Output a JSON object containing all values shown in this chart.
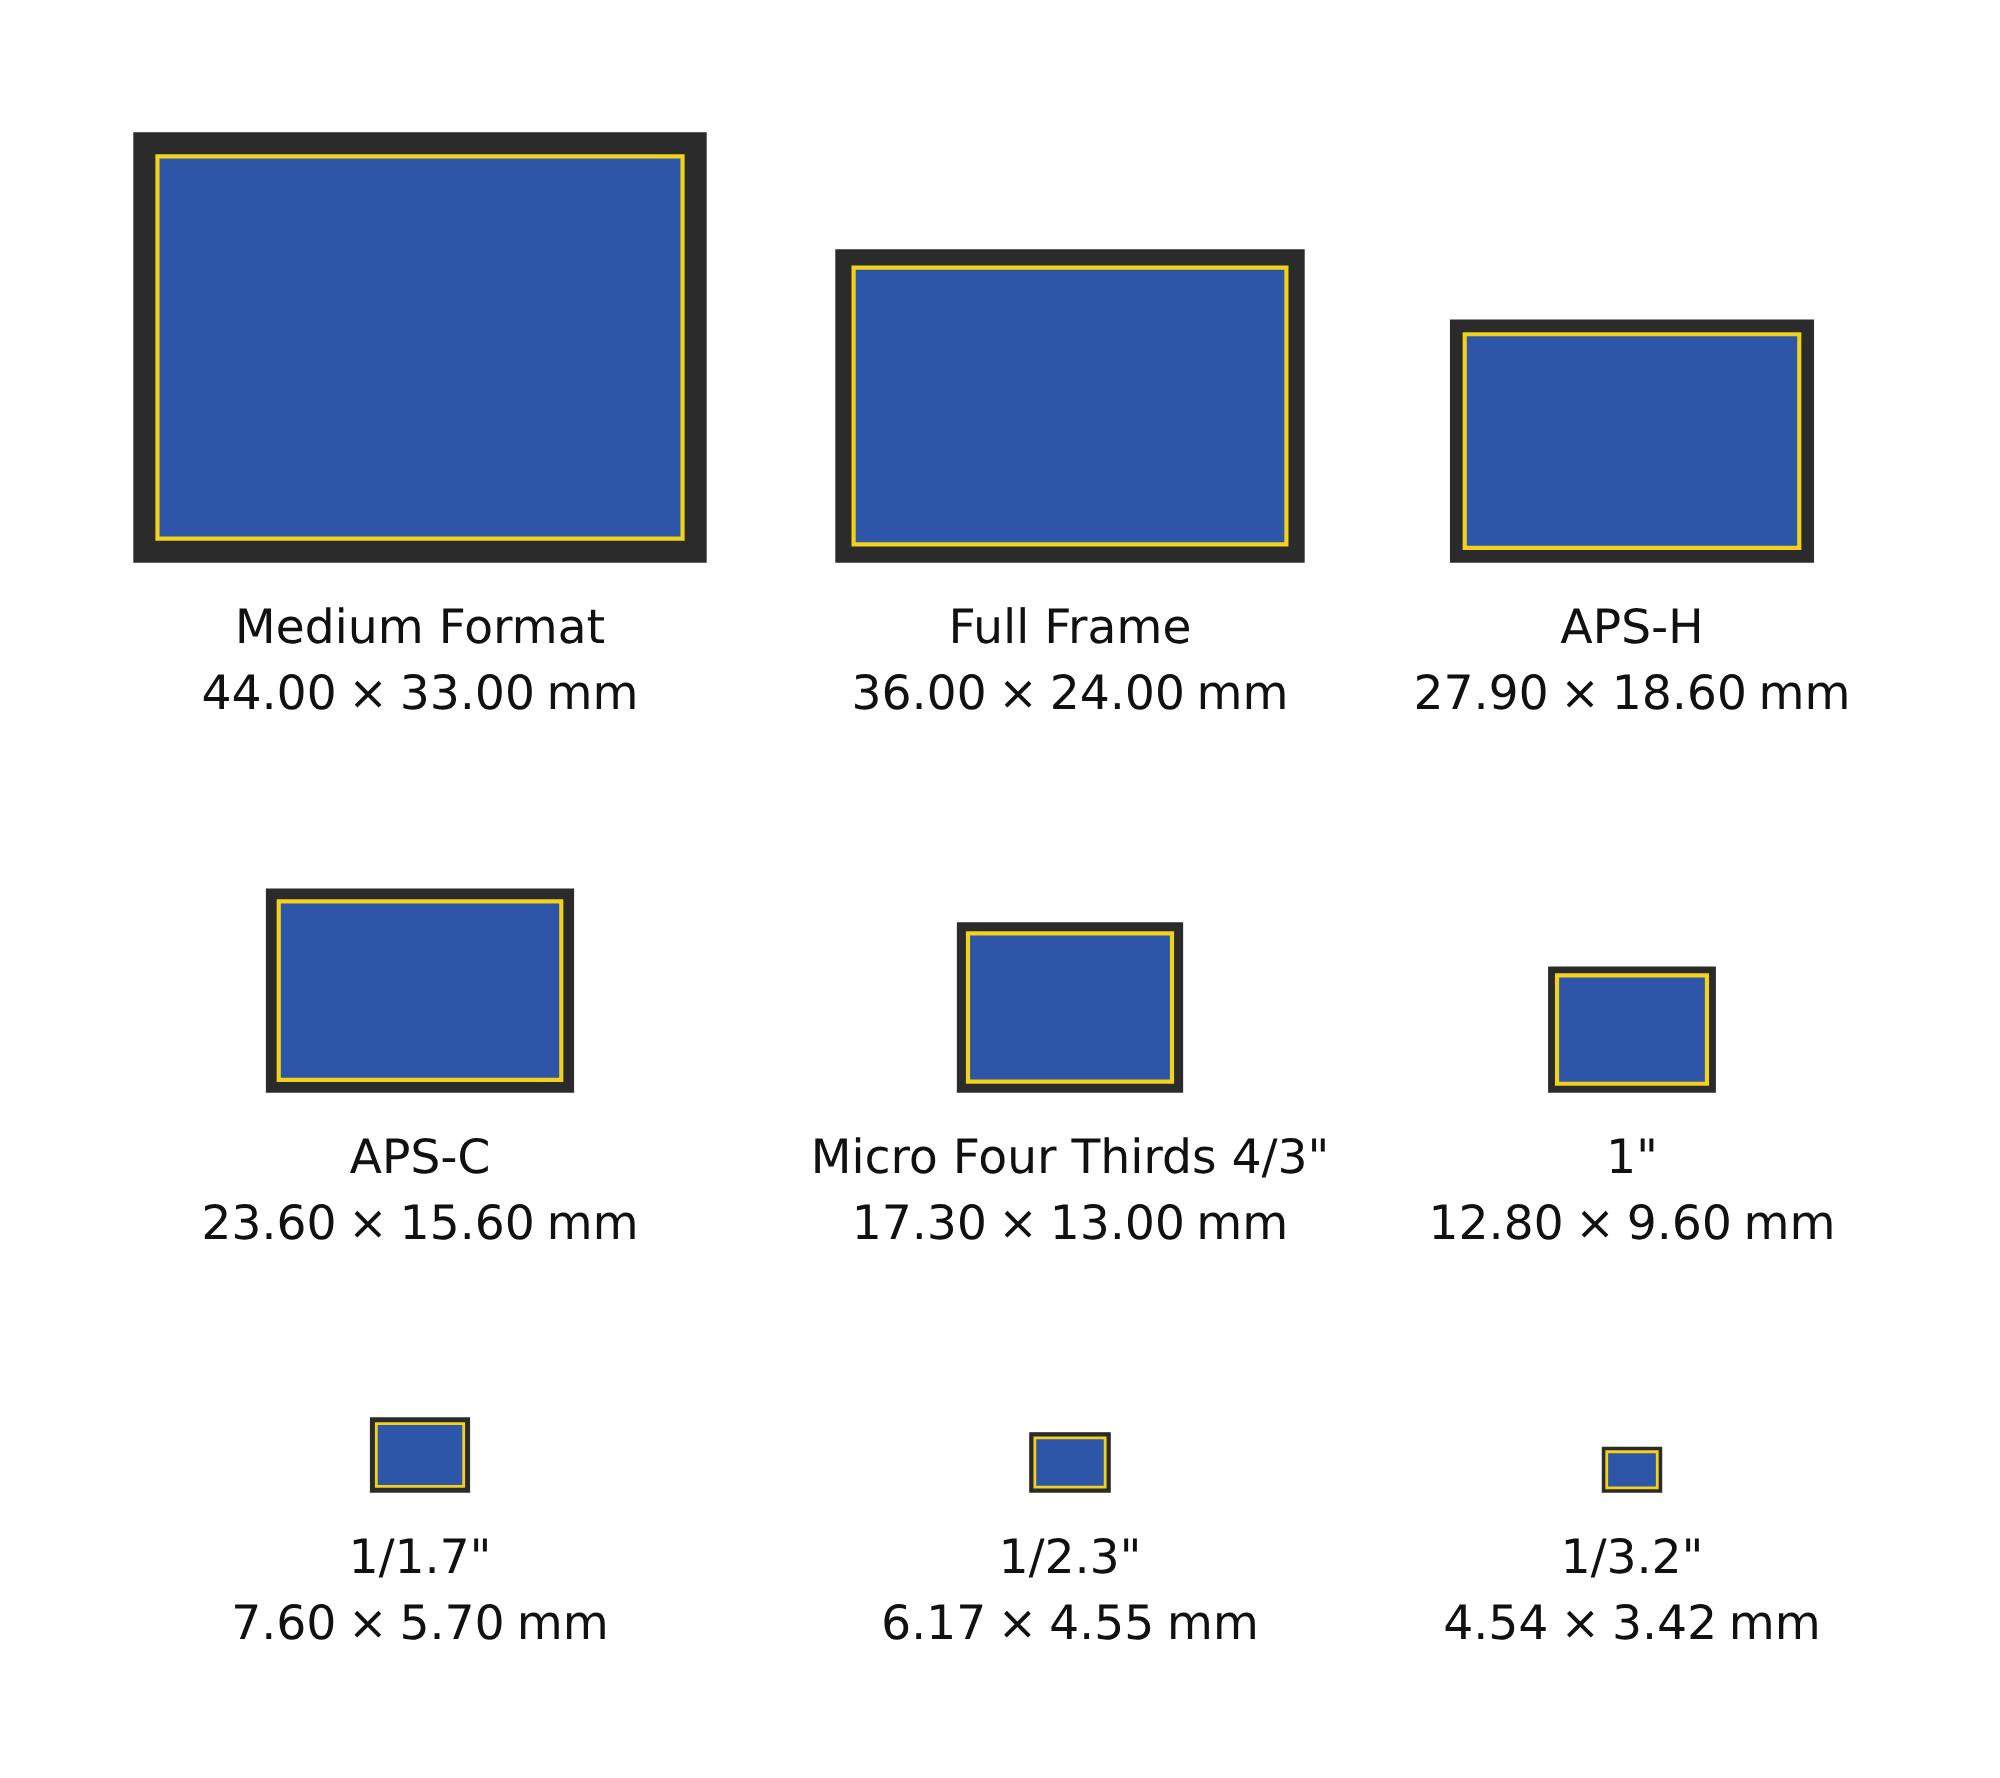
{
  "chart_data": {
    "type": "other",
    "categories": [
      "Medium Format",
      "Full Frame",
      "APS-H",
      "APS-C",
      "Micro Four Thirds 4/3\"",
      "1\"",
      "1/1.7\"",
      "1/2.3\"",
      "1/3.2\""
    ],
    "series": [
      {
        "color": "#2b2b2b",
        "values": [
          44.0,
          36.0,
          27.9,
          23.6,
          17.3,
          12.8,
          7.6,
          6.17,
          4.54
        ],
        "value_labels": [
          "44.00 ×",
          "36.00 ×",
          "27.90 ×",
          "23.60 ×",
          "17.30 ×",
          "12.80 ×",
          "7.60 ×",
          "6.17 ×",
          "4.54 ×"
        ]
      },
      {
        "color": "#2b2b2b",
        "values": [
          33.0,
          24.0,
          18.6,
          15.6,
          13.0,
          9.6,
          5.7,
          4.55,
          3.42
        ],
        "value_labels": [
          "33.00 mm",
          "24.00 mm",
          "18.60 mm",
          "15.60 mm",
          "13.00 mm",
          "9.60 mm",
          "5.70 mm",
          "4.55 mm",
          "3.42 mm"
        ]
      }
    ],
    "colors": [
      "#2d55a8",
      "#f2d21b"
    ]
  }
}
